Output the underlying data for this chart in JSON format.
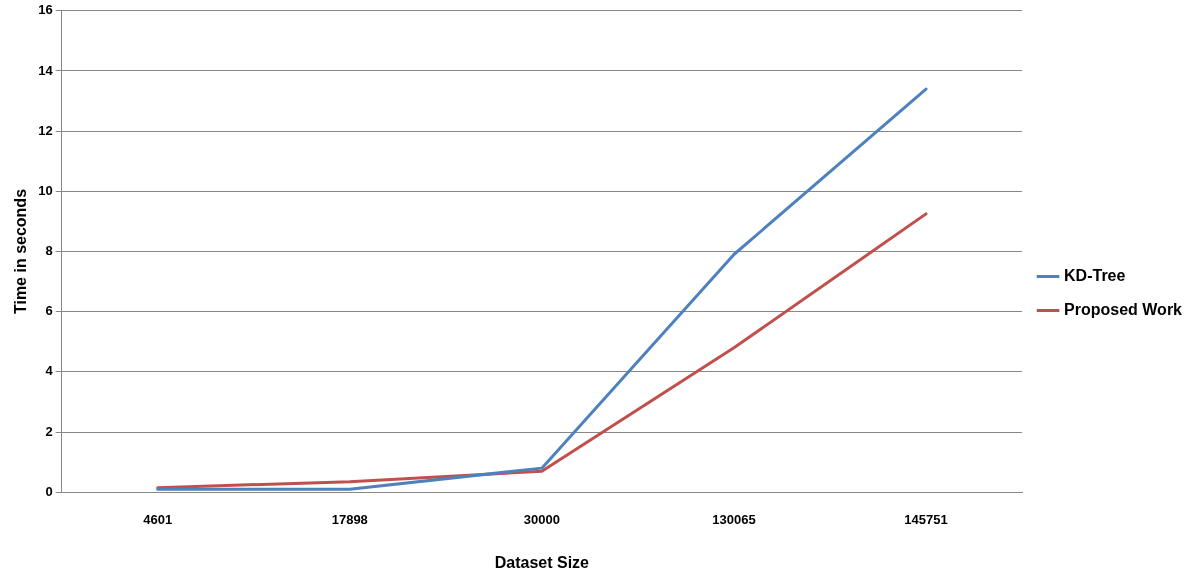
{
  "chart_data": {
    "type": "line",
    "xlabel": "Dataset Size",
    "ylabel": "Time in seconds",
    "categories": [
      "4601",
      "17898",
      "30000",
      "130065",
      "145751"
    ],
    "series": [
      {
        "name": "KD-Tree",
        "color": "#4f81bd",
        "values": [
          0.1,
          0.1,
          0.8,
          7.9,
          13.4
        ]
      },
      {
        "name": "Proposed Work",
        "color": "#c0504d",
        "values": [
          0.15,
          0.35,
          0.7,
          4.8,
          9.25
        ]
      }
    ],
    "ylim": [
      0,
      16
    ],
    "yticks": [
      0,
      2,
      4,
      6,
      8,
      10,
      12,
      14,
      16
    ],
    "grid": "y",
    "legend": "right",
    "marker": "none",
    "line_style": "solid"
  }
}
